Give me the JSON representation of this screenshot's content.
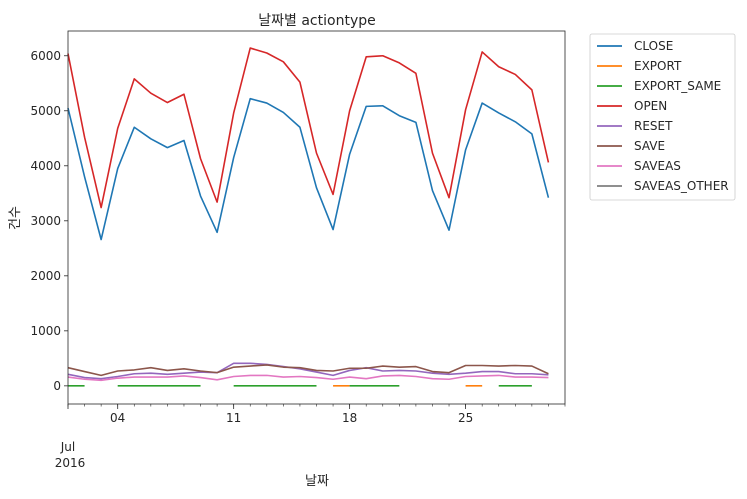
{
  "chart_data": {
    "type": "line",
    "title": "날짜별 actiontype",
    "xlabel": "날짜",
    "ylabel": "건수",
    "x_start": "2016-07-01",
    "x_end": "2016-07-31",
    "x_ticks": [
      {
        "date": "2016-07-01",
        "label": ""
      },
      {
        "date": "2016-07-04",
        "label": "04"
      },
      {
        "date": "2016-07-11",
        "label": "11"
      },
      {
        "date": "2016-07-18",
        "label": "18"
      },
      {
        "date": "2016-07-25",
        "label": "25"
      }
    ],
    "x_month_label": "Jul",
    "x_year_label": "2016",
    "ylim": [
      -330,
      6450
    ],
    "y_ticks": [
      0,
      1000,
      2000,
      3000,
      4000,
      5000,
      6000
    ],
    "grid": false,
    "legend_position": "outside-right",
    "series": [
      {
        "name": "CLOSE",
        "color": "#1f77b4",
        "start": "2016-07-01",
        "values": [
          5050,
          3800,
          2660,
          3950,
          4700,
          4490,
          4330,
          4460,
          3450,
          2790,
          4150,
          5220,
          5140,
          4970,
          4700,
          3600,
          2840,
          4210,
          5080,
          5090,
          4910,
          4790,
          3550,
          2830,
          4290,
          5140,
          4960,
          4800,
          4580,
          3420
        ]
      },
      {
        "name": "EXPORT",
        "color": "#ff7f0e",
        "start": "2016-07-01",
        "values": [
          null,
          null,
          null,
          null,
          null,
          null,
          null,
          null,
          null,
          null,
          null,
          null,
          null,
          null,
          null,
          null,
          0,
          0,
          null,
          null,
          null,
          null,
          null,
          null,
          0,
          0,
          null,
          null,
          null,
          null
        ]
      },
      {
        "name": "EXPORT_SAME",
        "color": "#2ca02c",
        "start": "2016-07-01",
        "values": [
          0,
          0,
          null,
          0,
          0,
          0,
          0,
          0,
          0,
          null,
          0,
          0,
          0,
          0,
          0,
          0,
          null,
          0,
          0,
          0,
          0,
          null,
          null,
          null,
          null,
          null,
          0,
          0,
          0,
          null
        ]
      },
      {
        "name": "OPEN",
        "color": "#d62728",
        "start": "2016-07-01",
        "values": [
          6040,
          4520,
          3240,
          4680,
          5580,
          5320,
          5150,
          5300,
          4130,
          3340,
          4960,
          6140,
          6050,
          5890,
          5520,
          4230,
          3480,
          5000,
          5980,
          6000,
          5870,
          5680,
          4230,
          3420,
          5020,
          6070,
          5800,
          5660,
          5380,
          4060
        ]
      },
      {
        "name": "RESET",
        "color": "#9467bd",
        "start": "2016-07-01",
        "values": [
          210,
          150,
          130,
          170,
          220,
          230,
          210,
          230,
          250,
          240,
          410,
          410,
          390,
          350,
          310,
          250,
          190,
          280,
          330,
          270,
          280,
          270,
          230,
          210,
          230,
          260,
          260,
          220,
          220,
          200
        ]
      },
      {
        "name": "SAVE",
        "color": "#8c564b",
        "start": "2016-07-01",
        "values": [
          330,
          260,
          190,
          270,
          290,
          330,
          280,
          310,
          270,
          240,
          340,
          360,
          380,
          340,
          330,
          280,
          270,
          320,
          320,
          360,
          340,
          350,
          260,
          240,
          370,
          370,
          360,
          370,
          360,
          220
        ]
      },
      {
        "name": "SAVEAS",
        "color": "#e377c2",
        "start": "2016-07-01",
        "values": [
          160,
          120,
          100,
          140,
          160,
          160,
          160,
          180,
          150,
          110,
          170,
          190,
          190,
          160,
          170,
          150,
          120,
          160,
          130,
          180,
          190,
          170,
          130,
          120,
          170,
          180,
          190,
          160,
          160,
          150
        ]
      },
      {
        "name": "SAVEAS_OTHER",
        "color": "#7f7f7f",
        "start": "2016-07-01",
        "values": []
      }
    ]
  }
}
